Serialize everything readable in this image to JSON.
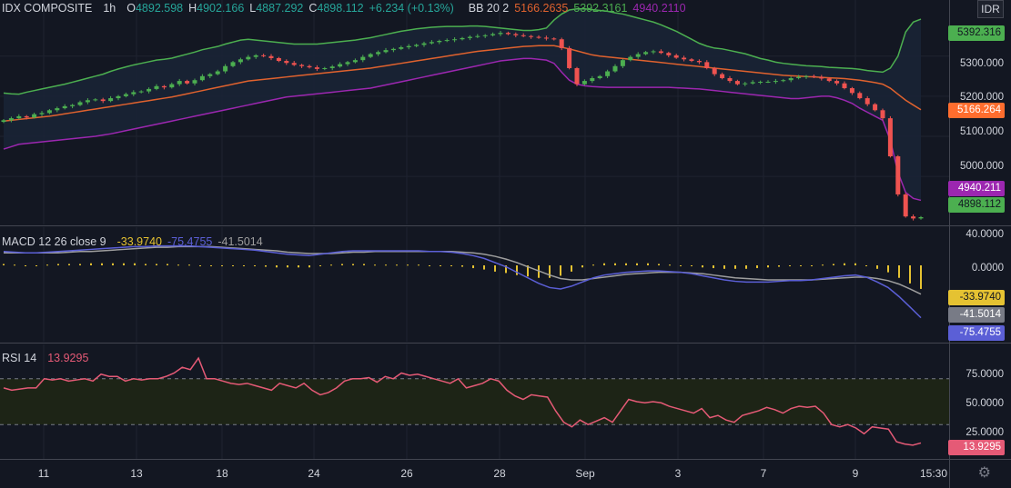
{
  "header": {
    "symbol": "IDX COMPOSITE",
    "interval": "1h",
    "o_label": "O",
    "o_value": "4892.598",
    "h_label": "H",
    "h_value": "4902.166",
    "l_label": "L",
    "l_value": "4887.292",
    "c_label": "C",
    "c_value": "4898.112",
    "change": "+6.234 (+0.13%)",
    "bb_label": "BB 20 2",
    "bb_basis": "5166.2635",
    "bb_upper": "5392.3161",
    "bb_lower": "4940.2110"
  },
  "currency": "IDR",
  "macd_legend": {
    "label": "MACD 12 26 close 9",
    "hist": "-33.9740",
    "macd": "-75.4755",
    "signal": "-41.5014"
  },
  "rsi_legend": {
    "label": "RSI 14",
    "value": "13.9295"
  },
  "price_axis_ticks": [
    "5300.000",
    "5200.000",
    "5100.000",
    "5000.000"
  ],
  "price_pills": {
    "upper": "5392.316",
    "basis": "5166.264",
    "lower": "4940.211",
    "last": "4898.112"
  },
  "macd_axis_ticks": [
    "40.0000",
    "0.0000"
  ],
  "macd_pills": {
    "hist": "-33.9740",
    "signal": "-41.5014",
    "macd": "-75.4755"
  },
  "rsi_axis_ticks": [
    "75.0000",
    "50.0000",
    "25.0000"
  ],
  "rsi_pill": "13.9295",
  "x_axis_labels": [
    "11",
    "13",
    "18",
    "24",
    "26",
    "28",
    "Sep",
    "3",
    "7",
    "9",
    "15:30"
  ],
  "colors": {
    "background": "#131722",
    "up": "#26a69a",
    "up_bright": "#4caf50",
    "down": "#ef5350",
    "bb_upper": "#4caf50",
    "bb_basis": "#e0622e",
    "bb_lower": "#9c27b0",
    "macd_line": "#5b5fd6",
    "signal_line": "#9e9e9e",
    "hist": "#e5c232",
    "rsi": "#e55a76"
  },
  "chart_data": [
    {
      "type": "candlestick",
      "title": "IDX COMPOSITE",
      "interval": "1h",
      "ylim": [
        4880,
        5440
      ],
      "yticks": [
        5000,
        5100,
        5200,
        5300
      ],
      "x_labels": [
        "11",
        "13",
        "18",
        "24",
        "26",
        "28",
        "Sep",
        "3",
        "7",
        "9",
        "15:30"
      ],
      "close": [
        5140,
        5145,
        5150,
        5147,
        5155,
        5158,
        5165,
        5170,
        5175,
        5178,
        5185,
        5190,
        5192,
        5188,
        5195,
        5200,
        5205,
        5210,
        5212,
        5218,
        5225,
        5222,
        5230,
        5238,
        5232,
        5240,
        5250,
        5255,
        5262,
        5275,
        5285,
        5292,
        5298,
        5302,
        5300,
        5295,
        5288,
        5283,
        5278,
        5275,
        5272,
        5268,
        5270,
        5274,
        5280,
        5285,
        5290,
        5298,
        5305,
        5310,
        5315,
        5318,
        5322,
        5325,
        5328,
        5332,
        5335,
        5338,
        5340,
        5342,
        5345,
        5348,
        5350,
        5352,
        5355,
        5358,
        5355,
        5352,
        5350,
        5348,
        5346,
        5344,
        5342,
        5320,
        5270,
        5230,
        5238,
        5245,
        5250,
        5262,
        5275,
        5290,
        5298,
        5305,
        5310,
        5312,
        5308,
        5302,
        5296,
        5292,
        5288,
        5285,
        5270,
        5255,
        5245,
        5238,
        5230,
        5232,
        5235,
        5236,
        5236,
        5238,
        5240,
        5245,
        5248,
        5250,
        5248,
        5244,
        5238,
        5232,
        5220,
        5208,
        5195,
        5180,
        5165,
        5145,
        5050,
        4955,
        4900,
        4895,
        4898.112
      ],
      "bb_upper": [
        5208,
        5206,
        5205,
        5210,
        5214,
        5218,
        5222,
        5226,
        5230,
        5235,
        5240,
        5245,
        5250,
        5255,
        5262,
        5268,
        5273,
        5278,
        5282,
        5286,
        5290,
        5292,
        5295,
        5300,
        5305,
        5310,
        5316,
        5320,
        5324,
        5330,
        5335,
        5340,
        5342,
        5340,
        5338,
        5336,
        5334,
        5332,
        5330,
        5330,
        5330,
        5330,
        5332,
        5334,
        5336,
        5338,
        5340,
        5343,
        5346,
        5350,
        5354,
        5358,
        5362,
        5365,
        5368,
        5370,
        5372,
        5373,
        5374,
        5374,
        5374,
        5375,
        5375,
        5374,
        5372,
        5370,
        5368,
        5366,
        5364,
        5364,
        5366,
        5370,
        5390,
        5405,
        5415,
        5418,
        5418,
        5416,
        5414,
        5412,
        5408,
        5405,
        5400,
        5395,
        5390,
        5385,
        5378,
        5370,
        5362,
        5352,
        5342,
        5332,
        5325,
        5320,
        5318,
        5314,
        5310,
        5306,
        5300,
        5294,
        5290,
        5285,
        5282,
        5280,
        5278,
        5276,
        5275,
        5274,
        5272,
        5271,
        5270,
        5269,
        5267,
        5264,
        5262,
        5260,
        5270,
        5300,
        5360,
        5385,
        5392.3161
      ],
      "bb_basis": [
        5138,
        5140,
        5142,
        5144,
        5146,
        5148,
        5150,
        5153,
        5156,
        5159,
        5162,
        5165,
        5168,
        5171,
        5174,
        5177,
        5180,
        5183,
        5186,
        5189,
        5192,
        5195,
        5198,
        5202,
        5206,
        5210,
        5214,
        5218,
        5222,
        5226,
        5230,
        5234,
        5238,
        5240,
        5242,
        5244,
        5246,
        5248,
        5250,
        5252,
        5254,
        5256,
        5258,
        5260,
        5262,
        5264,
        5266,
        5268,
        5270,
        5273,
        5276,
        5279,
        5282,
        5285,
        5288,
        5291,
        5294,
        5297,
        5300,
        5303,
        5306,
        5309,
        5312,
        5314,
        5316,
        5318,
        5320,
        5322,
        5324,
        5325,
        5326,
        5326,
        5326,
        5322,
        5318,
        5313,
        5308,
        5303,
        5300,
        5298,
        5296,
        5294,
        5292,
        5290,
        5288,
        5286,
        5284,
        5282,
        5280,
        5278,
        5276,
        5274,
        5272,
        5270,
        5268,
        5266,
        5264,
        5262,
        5260,
        5258,
        5256,
        5254,
        5252,
        5251,
        5250,
        5249,
        5248,
        5247,
        5246,
        5245,
        5244,
        5242,
        5240,
        5237,
        5234,
        5230,
        5220,
        5205,
        5190,
        5178,
        5166.2635
      ],
      "bb_lower": [
        5068,
        5074,
        5080,
        5082,
        5084,
        5086,
        5088,
        5090,
        5092,
        5094,
        5096,
        5098,
        5100,
        5103,
        5106,
        5110,
        5114,
        5118,
        5122,
        5126,
        5130,
        5134,
        5138,
        5142,
        5146,
        5150,
        5154,
        5158,
        5162,
        5166,
        5170,
        5174,
        5178,
        5182,
        5186,
        5190,
        5194,
        5198,
        5200,
        5202,
        5204,
        5206,
        5208,
        5210,
        5212,
        5214,
        5216,
        5218,
        5220,
        5224,
        5228,
        5232,
        5236,
        5240,
        5244,
        5248,
        5252,
        5256,
        5260,
        5264,
        5268,
        5272,
        5276,
        5280,
        5284,
        5288,
        5290,
        5292,
        5294,
        5294,
        5292,
        5290,
        5282,
        5260,
        5240,
        5230,
        5226,
        5224,
        5223,
        5222,
        5222,
        5222,
        5222,
        5222,
        5222,
        5222,
        5222,
        5222,
        5221,
        5220,
        5219,
        5218,
        5216,
        5214,
        5212,
        5210,
        5208,
        5206,
        5204,
        5202,
        5200,
        5198,
        5196,
        5194,
        5194,
        5196,
        5198,
        5200,
        5200,
        5196,
        5190,
        5182,
        5170,
        5160,
        5150,
        5140,
        5090,
        5010,
        4960,
        4945,
        4940.211
      ],
      "series_names": [
        "BB 20 2"
      ]
    },
    {
      "type": "line",
      "title": "MACD 12 26 close 9",
      "ylim": [
        -110,
        55
      ],
      "yticks": [
        40,
        0
      ],
      "macd": [
        20,
        19,
        18,
        18,
        19,
        20,
        21,
        22,
        23,
        24,
        25,
        26,
        27,
        27,
        28,
        28,
        28,
        28,
        27,
        26,
        25,
        24,
        23,
        22,
        20,
        18,
        16,
        15,
        14,
        16,
        18,
        20,
        21,
        21,
        21,
        21,
        21,
        21,
        21,
        20,
        20,
        19,
        17,
        14,
        10,
        4,
        -2,
        -10,
        -18,
        -26,
        -32,
        -34,
        -30,
        -24,
        -18,
        -14,
        -12,
        -10,
        -9,
        -8,
        -8,
        -9,
        -10,
        -12,
        -15,
        -18,
        -21,
        -23,
        -24,
        -24,
        -24,
        -23,
        -22,
        -22,
        -21,
        -19,
        -17,
        -15,
        -14,
        -17,
        -24,
        -32,
        -45,
        -60,
        -75.4755
      ],
      "signal": [
        18,
        18,
        18,
        18,
        18,
        18,
        19,
        20,
        20,
        21,
        22,
        23,
        24,
        25,
        26,
        26,
        27,
        27,
        27,
        27,
        26,
        25,
        24,
        23,
        22,
        21,
        19,
        18,
        17,
        17,
        17,
        18,
        19,
        19,
        20,
        20,
        20,
        20,
        20,
        20,
        20,
        20,
        19,
        18,
        16,
        13,
        9,
        4,
        -2,
        -8,
        -14,
        -19,
        -21,
        -21,
        -19,
        -17,
        -15,
        -13,
        -12,
        -11,
        -10,
        -10,
        -10,
        -11,
        -12,
        -14,
        -16,
        -18,
        -19,
        -20,
        -21,
        -21,
        -21,
        -21,
        -21,
        -20,
        -19,
        -18,
        -17,
        -17,
        -19,
        -22,
        -27,
        -34,
        -41.5014
      ],
      "hist": [
        2,
        1,
        0,
        0,
        1,
        2,
        2,
        2,
        3,
        3,
        3,
        3,
        3,
        2,
        2,
        2,
        1,
        1,
        0,
        -1,
        -1,
        -1,
        -1,
        -1,
        -2,
        -3,
        -3,
        -3,
        -3,
        -1,
        1,
        2,
        2,
        2,
        1,
        1,
        1,
        1,
        1,
        0,
        0,
        -1,
        -2,
        -4,
        -6,
        -9,
        -11,
        -14,
        -16,
        -18,
        -18,
        -15,
        -9,
        -3,
        1,
        3,
        3,
        3,
        3,
        3,
        2,
        1,
        0,
        -1,
        -3,
        -4,
        -5,
        -5,
        -5,
        -4,
        -3,
        -2,
        -1,
        -1,
        0,
        1,
        2,
        3,
        3,
        0,
        -5,
        -10,
        -18,
        -26,
        -33.974
      ]
    },
    {
      "type": "line",
      "title": "RSI 14",
      "ylim": [
        0,
        100
      ],
      "yticks": [
        75,
        50,
        25
      ],
      "bands": [
        30,
        70
      ],
      "values": [
        62,
        60,
        61,
        62,
        62,
        70,
        69,
        70,
        68,
        69,
        70,
        68,
        74,
        72,
        72,
        68,
        70,
        69,
        70,
        70,
        72,
        75,
        80,
        78,
        88,
        70,
        70,
        68,
        66,
        65,
        66,
        64,
        62,
        60,
        66,
        64,
        62,
        66,
        60,
        56,
        58,
        62,
        68,
        70,
        70,
        71,
        67,
        72,
        70,
        75,
        73,
        74,
        72,
        70,
        68,
        66,
        70,
        62,
        64,
        66,
        70,
        68,
        60,
        55,
        52,
        56,
        55,
        54,
        42,
        32,
        28,
        34,
        30,
        33,
        36,
        32,
        42,
        52,
        50,
        49,
        50,
        49,
        46,
        44,
        42,
        40,
        44,
        36,
        38,
        34,
        32,
        38,
        40,
        42,
        45,
        43,
        40,
        44,
        46,
        45,
        46,
        40,
        30,
        28,
        30,
        27,
        22,
        28,
        27,
        26,
        15,
        13,
        12,
        13.9295
      ]
    }
  ]
}
